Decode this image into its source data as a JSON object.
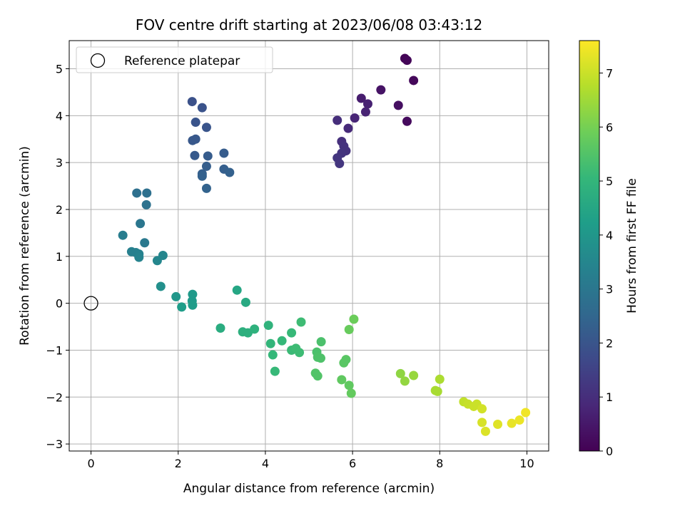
{
  "chart_data": {
    "type": "scatter",
    "title": "FOV centre drift starting at 2023/06/08 03:43:12",
    "xlabel": "Angular distance from reference (arcmin)",
    "ylabel": "Rotation from reference (arcmin)",
    "xlim": [
      -0.5,
      10.5
    ],
    "ylim": [
      -3.15,
      5.6
    ],
    "xticks": [
      "0",
      "2",
      "4",
      "6",
      "8",
      "10"
    ],
    "yticks": [
      "−3",
      "−2",
      "−1",
      "0",
      "1",
      "2",
      "3",
      "4",
      "5"
    ],
    "grid": true,
    "legend": {
      "position": "top-left",
      "entries": [
        "Reference platepar"
      ]
    },
    "reference_point": {
      "x": 0,
      "y": 0
    },
    "colorbar": {
      "label": "Hours from first FF file",
      "range": [
        0,
        7.6
      ],
      "ticks": [
        "0",
        "1",
        "2",
        "3",
        "4",
        "5",
        "6",
        "7"
      ],
      "colormap": [
        "#440154",
        "#482878",
        "#3e4989",
        "#31688e",
        "#26828e",
        "#1f9e89",
        "#35b779",
        "#6ece58",
        "#b5de2b",
        "#fde725"
      ]
    },
    "points": [
      {
        "x": 7.2,
        "y": 5.22,
        "t": 0.05
      },
      {
        "x": 7.25,
        "y": 5.18,
        "t": 0.1
      },
      {
        "x": 7.4,
        "y": 4.75,
        "t": 0.15
      },
      {
        "x": 7.05,
        "y": 4.22,
        "t": 0.3
      },
      {
        "x": 7.25,
        "y": 3.88,
        "t": 0.2
      },
      {
        "x": 6.65,
        "y": 4.55,
        "t": 0.4
      },
      {
        "x": 6.2,
        "y": 4.37,
        "t": 0.6
      },
      {
        "x": 6.35,
        "y": 4.25,
        "t": 0.7
      },
      {
        "x": 6.3,
        "y": 4.08,
        "t": 0.75
      },
      {
        "x": 6.05,
        "y": 3.95,
        "t": 0.8
      },
      {
        "x": 5.9,
        "y": 3.73,
        "t": 0.9
      },
      {
        "x": 5.65,
        "y": 3.9,
        "t": 1.0
      },
      {
        "x": 5.75,
        "y": 3.45,
        "t": 1.05
      },
      {
        "x": 5.8,
        "y": 3.35,
        "t": 1.1
      },
      {
        "x": 5.85,
        "y": 3.25,
        "t": 1.1
      },
      {
        "x": 5.75,
        "y": 3.2,
        "t": 1.15
      },
      {
        "x": 5.65,
        "y": 3.1,
        "t": 1.2
      },
      {
        "x": 5.7,
        "y": 2.98,
        "t": 1.2
      },
      {
        "x": 2.32,
        "y": 4.3,
        "t": 1.9
      },
      {
        "x": 2.55,
        "y": 4.17,
        "t": 1.95
      },
      {
        "x": 2.4,
        "y": 3.86,
        "t": 2.0
      },
      {
        "x": 2.65,
        "y": 3.75,
        "t": 2.0
      },
      {
        "x": 2.4,
        "y": 3.5,
        "t": 2.1
      },
      {
        "x": 2.33,
        "y": 3.47,
        "t": 2.1
      },
      {
        "x": 3.05,
        "y": 3.2,
        "t": 2.2
      },
      {
        "x": 2.38,
        "y": 3.15,
        "t": 2.15
      },
      {
        "x": 2.68,
        "y": 3.14,
        "t": 2.2
      },
      {
        "x": 2.65,
        "y": 2.92,
        "t": 2.25
      },
      {
        "x": 3.05,
        "y": 2.86,
        "t": 2.3
      },
      {
        "x": 3.18,
        "y": 2.79,
        "t": 2.35
      },
      {
        "x": 2.55,
        "y": 2.76,
        "t": 2.3
      },
      {
        "x": 2.55,
        "y": 2.71,
        "t": 2.35
      },
      {
        "x": 2.65,
        "y": 2.45,
        "t": 2.4
      },
      {
        "x": 1.05,
        "y": 2.35,
        "t": 2.8
      },
      {
        "x": 1.28,
        "y": 2.35,
        "t": 2.8
      },
      {
        "x": 1.27,
        "y": 2.1,
        "t": 2.85
      },
      {
        "x": 1.13,
        "y": 1.7,
        "t": 3.0
      },
      {
        "x": 0.73,
        "y": 1.45,
        "t": 3.2
      },
      {
        "x": 1.23,
        "y": 1.29,
        "t": 3.1
      },
      {
        "x": 0.93,
        "y": 1.1,
        "t": 3.3
      },
      {
        "x": 1.03,
        "y": 1.08,
        "t": 3.3
      },
      {
        "x": 1.1,
        "y": 1.05,
        "t": 3.35
      },
      {
        "x": 1.1,
        "y": 0.98,
        "t": 3.4
      },
      {
        "x": 1.65,
        "y": 1.02,
        "t": 3.5
      },
      {
        "x": 1.52,
        "y": 0.91,
        "t": 3.5
      },
      {
        "x": 1.6,
        "y": 0.36,
        "t": 3.8
      },
      {
        "x": 1.95,
        "y": 0.14,
        "t": 4.0
      },
      {
        "x": 2.33,
        "y": 0.19,
        "t": 4.1
      },
      {
        "x": 2.32,
        "y": 0.05,
        "t": 4.1
      },
      {
        "x": 2.33,
        "y": -0.04,
        "t": 4.15
      },
      {
        "x": 2.08,
        "y": -0.08,
        "t": 4.2
      },
      {
        "x": 3.35,
        "y": 0.28,
        "t": 4.5
      },
      {
        "x": 3.55,
        "y": 0.02,
        "t": 4.6
      },
      {
        "x": 2.97,
        "y": -0.53,
        "t": 4.7
      },
      {
        "x": 3.48,
        "y": -0.61,
        "t": 4.8
      },
      {
        "x": 3.6,
        "y": -0.63,
        "t": 4.8
      },
      {
        "x": 3.75,
        "y": -0.55,
        "t": 4.85
      },
      {
        "x": 4.07,
        "y": -0.47,
        "t": 4.9
      },
      {
        "x": 4.12,
        "y": -0.86,
        "t": 5.0
      },
      {
        "x": 4.38,
        "y": -0.8,
        "t": 5.05
      },
      {
        "x": 4.17,
        "y": -1.1,
        "t": 5.05
      },
      {
        "x": 4.22,
        "y": -1.45,
        "t": 5.1
      },
      {
        "x": 4.6,
        "y": -0.63,
        "t": 5.1
      },
      {
        "x": 4.82,
        "y": -0.4,
        "t": 5.2
      },
      {
        "x": 4.6,
        "y": -1.0,
        "t": 5.15
      },
      {
        "x": 4.7,
        "y": -0.96,
        "t": 5.2
      },
      {
        "x": 4.78,
        "y": -1.05,
        "t": 5.2
      },
      {
        "x": 5.28,
        "y": -0.82,
        "t": 5.4
      },
      {
        "x": 5.18,
        "y": -1.04,
        "t": 5.4
      },
      {
        "x": 5.2,
        "y": -1.15,
        "t": 5.45
      },
      {
        "x": 5.27,
        "y": -1.17,
        "t": 5.45
      },
      {
        "x": 5.15,
        "y": -1.49,
        "t": 5.5
      },
      {
        "x": 5.2,
        "y": -1.55,
        "t": 5.5
      },
      {
        "x": 5.85,
        "y": -1.2,
        "t": 5.6
      },
      {
        "x": 5.8,
        "y": -1.27,
        "t": 5.6
      },
      {
        "x": 5.75,
        "y": -1.63,
        "t": 5.7
      },
      {
        "x": 5.92,
        "y": -1.75,
        "t": 5.7
      },
      {
        "x": 5.97,
        "y": -1.92,
        "t": 5.75
      },
      {
        "x": 5.92,
        "y": -0.56,
        "t": 5.8
      },
      {
        "x": 6.03,
        "y": -0.34,
        "t": 5.85
      },
      {
        "x": 7.1,
        "y": -1.5,
        "t": 6.3
      },
      {
        "x": 7.2,
        "y": -1.66,
        "t": 6.35
      },
      {
        "x": 7.4,
        "y": -1.54,
        "t": 6.4
      },
      {
        "x": 7.9,
        "y": -1.86,
        "t": 6.6
      },
      {
        "x": 7.95,
        "y": -1.88,
        "t": 6.6
      },
      {
        "x": 8.0,
        "y": -1.62,
        "t": 6.65
      },
      {
        "x": 8.55,
        "y": -2.1,
        "t": 6.9
      },
      {
        "x": 8.65,
        "y": -2.15,
        "t": 6.95
      },
      {
        "x": 8.78,
        "y": -2.2,
        "t": 7.0
      },
      {
        "x": 8.85,
        "y": -2.15,
        "t": 7.0
      },
      {
        "x": 8.97,
        "y": -2.25,
        "t": 7.1
      },
      {
        "x": 8.97,
        "y": -2.54,
        "t": 7.15
      },
      {
        "x": 9.05,
        "y": -2.73,
        "t": 7.2
      },
      {
        "x": 9.33,
        "y": -2.58,
        "t": 7.25
      },
      {
        "x": 9.65,
        "y": -2.56,
        "t": 7.35
      },
      {
        "x": 9.83,
        "y": -2.49,
        "t": 7.4
      },
      {
        "x": 9.97,
        "y": -2.33,
        "t": 7.45
      }
    ]
  }
}
